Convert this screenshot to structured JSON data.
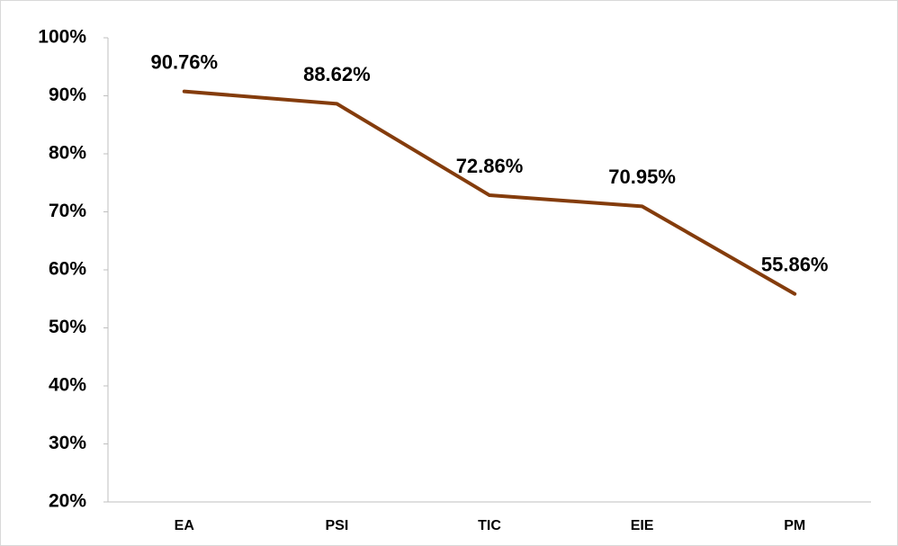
{
  "chart_data": {
    "type": "line",
    "categories": [
      "EA",
      "PSI",
      "TIC",
      "EIE",
      "PM"
    ],
    "series": [
      {
        "name": null,
        "color": "#843c0c",
        "values": [
          90.76,
          88.62,
          72.86,
          70.95,
          55.86
        ],
        "value_labels": [
          "90.76%",
          "88.62%",
          "72.86%",
          "70.95%",
          "55.86%"
        ]
      }
    ],
    "ylim": [
      20,
      100
    ],
    "yticks": [
      {
        "value": 20,
        "label": "20%"
      },
      {
        "value": 30,
        "label": "30%"
      },
      {
        "value": 40,
        "label": "40%"
      },
      {
        "value": 50,
        "label": "50%"
      },
      {
        "value": 60,
        "label": "60%"
      },
      {
        "value": 70,
        "label": "70%"
      },
      {
        "value": 80,
        "label": "80%"
      },
      {
        "value": 90,
        "label": "90%"
      },
      {
        "value": 100,
        "label": "100%"
      }
    ],
    "grid": false
  }
}
